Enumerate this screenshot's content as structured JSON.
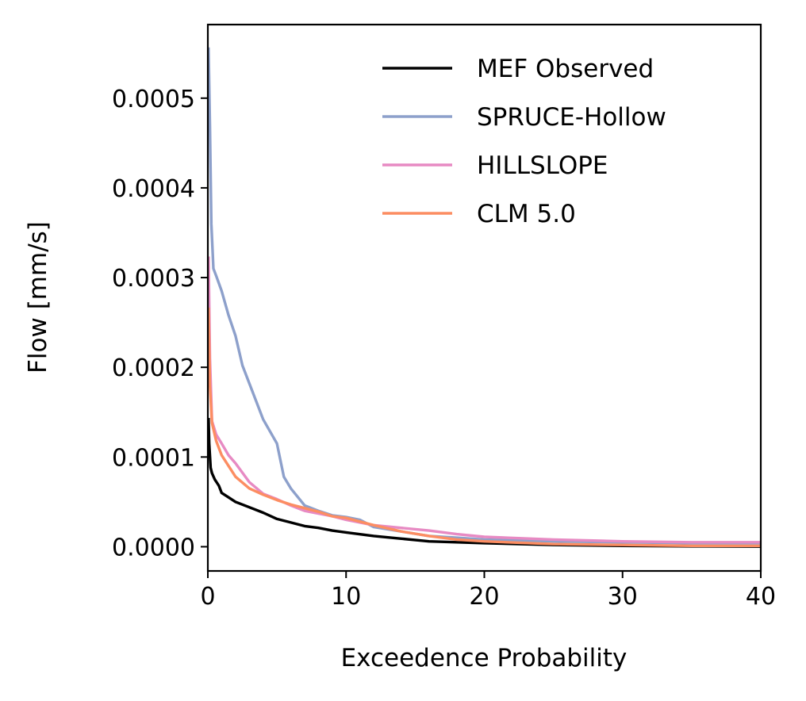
{
  "chart_data": {
    "type": "line",
    "title": "",
    "xlabel": "Exceedence Probability",
    "ylabel": "Flow [mm/s]",
    "xlim": [
      0,
      40
    ],
    "ylim": [
      -2.7e-05,
      0.000582
    ],
    "xticks": [
      0,
      10,
      20,
      30,
      40
    ],
    "xtick_labels": [
      "0",
      "10",
      "20",
      "30",
      "40"
    ],
    "yticks": [
      0.0,
      0.0001,
      0.0002,
      0.0003,
      0.0004,
      0.0005
    ],
    "ytick_labels": [
      "0.0000",
      "0.0001",
      "0.0002",
      "0.0003",
      "0.0004",
      "0.0005"
    ],
    "grid": false,
    "legend": "top-right",
    "series": [
      {
        "name": "MEF Observed",
        "color": "#000000",
        "x": [
          0.05,
          0.1,
          0.2,
          0.3,
          0.5,
          0.8,
          1.0,
          1.5,
          2.0,
          3.0,
          4.0,
          5.0,
          6.0,
          7.0,
          8.0,
          9.0,
          10.0,
          12.0,
          14.0,
          16.0,
          18.0,
          20.0,
          25.0,
          30.0,
          35.0,
          40.0
        ],
        "y": [
          0.000142,
          0.000115,
          8.8e-05,
          8.2e-05,
          7.5e-05,
          6.8e-05,
          6e-05,
          5.5e-05,
          5e-05,
          4.4e-05,
          3.8e-05,
          3.1e-05,
          2.7e-05,
          2.3e-05,
          2.1e-05,
          1.8e-05,
          1.6e-05,
          1.2e-05,
          9e-06,
          6e-06,
          5e-06,
          4e-06,
          2e-06,
          1e-06,
          5e-07,
          2e-07
        ]
      },
      {
        "name": "SPRUCE-Hollow",
        "color": "#8DA0CB",
        "x": [
          0.05,
          0.15,
          0.25,
          0.4,
          0.6,
          1.0,
          1.5,
          2.0,
          2.5,
          3.0,
          4.0,
          5.0,
          5.5,
          6.0,
          7.0,
          8.0,
          9.0,
          10.0,
          11.0,
          12.0,
          14.0,
          16.0,
          18.0,
          20.0,
          25.0,
          30.0,
          35.0,
          40.0
        ],
        "y": [
          0.000555,
          0.00047,
          0.00036,
          0.00031,
          0.000302,
          0.000285,
          0.000258,
          0.000235,
          0.000202,
          0.000182,
          0.000142,
          0.000115,
          7.8e-05,
          6.5e-05,
          4.6e-05,
          4e-05,
          3.5e-05,
          3.3e-05,
          3e-05,
          2.2e-05,
          1.7e-05,
          1.2e-05,
          1e-05,
          8e-06,
          6e-06,
          5e-06,
          4e-06,
          4e-06
        ]
      },
      {
        "name": "HILLSLOPE",
        "color": "#E78AC3",
        "x": [
          0.05,
          0.15,
          0.3,
          0.6,
          1.0,
          1.5,
          2.0,
          3.0,
          4.0,
          5.0,
          6.0,
          7.0,
          8.0,
          9.0,
          10.0,
          12.0,
          14.0,
          16.0,
          18.0,
          20.0,
          25.0,
          30.0,
          35.0,
          40.0
        ],
        "y": [
          0.000322,
          0.00021,
          0.00014,
          0.000125,
          0.000115,
          0.000102,
          9.3e-05,
          7.2e-05,
          5.9e-05,
          5.3e-05,
          4.6e-05,
          4e-05,
          3.7e-05,
          3.4e-05,
          3e-05,
          2.4e-05,
          2.1e-05,
          1.8e-05,
          1.4e-05,
          1.1e-05,
          8e-06,
          6e-06,
          5e-06,
          5e-06
        ]
      },
      {
        "name": "CLM 5.0",
        "color": "#FC8D62",
        "x": [
          0.05,
          0.15,
          0.3,
          0.6,
          1.0,
          1.5,
          2.0,
          3.0,
          4.0,
          5.0,
          6.0,
          7.0,
          8.0,
          9.0,
          10.0,
          12.0,
          14.0,
          16.0,
          18.0,
          20.0,
          25.0,
          30.0,
          35.0,
          40.0
        ],
        "y": [
          0.000265,
          0.00018,
          0.000138,
          0.000118,
          0.000102,
          9e-05,
          7.8e-05,
          6.5e-05,
          5.8e-05,
          5.2e-05,
          4.7e-05,
          4.3e-05,
          3.9e-05,
          3.4e-05,
          3.2e-05,
          2.4e-05,
          1.7e-05,
          1.2e-05,
          8e-06,
          6e-06,
          3e-06,
          2e-06,
          1e-06,
          1e-06
        ]
      }
    ]
  }
}
